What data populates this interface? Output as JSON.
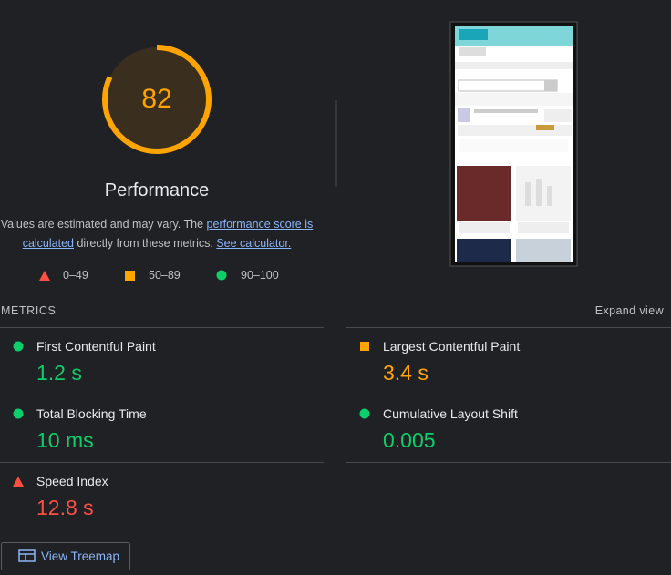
{
  "gauge": {
    "score": 82,
    "title": "Performance"
  },
  "description": {
    "text1": "Values are estimated and may vary. The ",
    "link1": "performance score is calculated",
    "text2": " directly from these metrics. ",
    "link2": "See calculator."
  },
  "legend": [
    "0–49",
    "50–89",
    "90–100"
  ],
  "metrics_header": {
    "title": "METRICS",
    "toggle": "Expand view"
  },
  "metrics": [
    {
      "name": "First Contentful Paint",
      "value": "1.2 s"
    },
    {
      "name": "Largest Contentful Paint",
      "value": "3.4 s"
    },
    {
      "name": "Total Blocking Time",
      "value": "10 ms"
    },
    {
      "name": "Cumulative Layout Shift",
      "value": "0.005"
    },
    {
      "name": "Speed Index",
      "value": "12.8 s"
    }
  ],
  "button": "View Treemap"
}
